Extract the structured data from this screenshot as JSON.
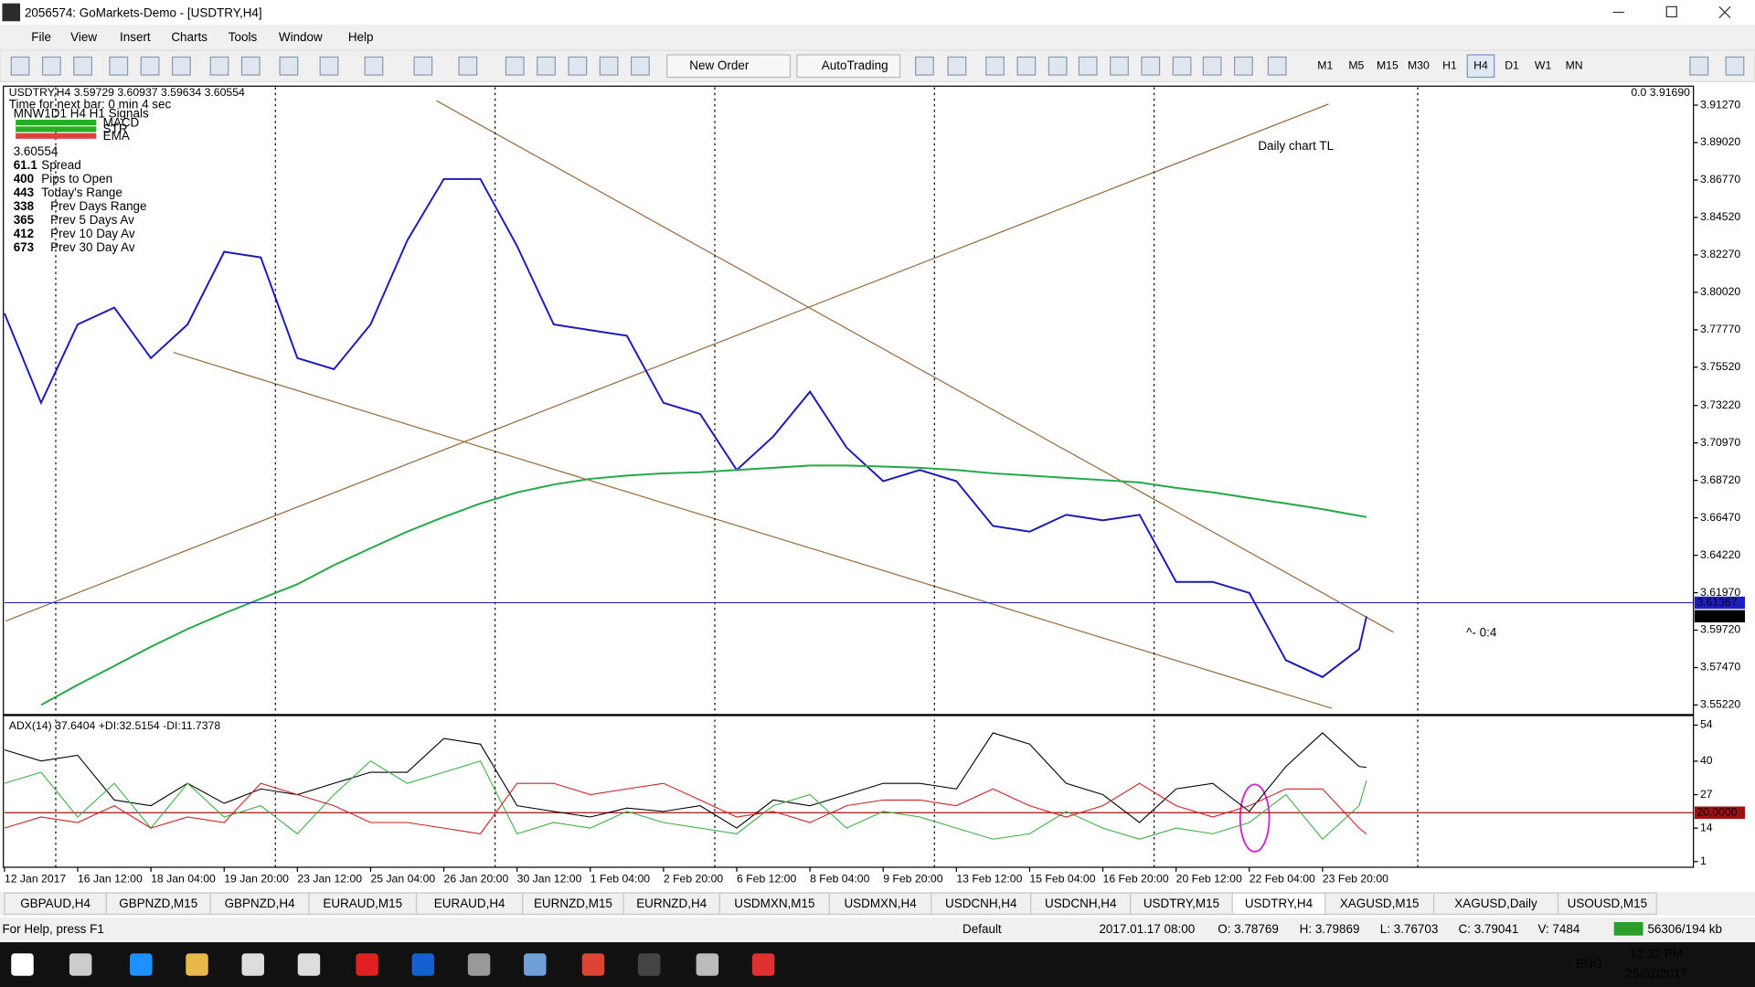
{
  "window_title": "2056574: GoMarkets-Demo - [USDTRY,H4]",
  "menu": [
    "File",
    "View",
    "Insert",
    "Charts",
    "Tools",
    "Window",
    "Help"
  ],
  "toolbar": {
    "buttons": [
      "New Order",
      "AutoTrading"
    ],
    "timeframes": [
      "M1",
      "M5",
      "M15",
      "M30",
      "H1",
      "H4",
      "D1",
      "W1",
      "MN"
    ]
  },
  "info_panel": {
    "symbol_header": "USDTRY,H4  3.59729 3.60937 3.59634 3.60554",
    "corner_value": "0.0 3.91690",
    "timer": "Time for next bar: 0 min 4 sec",
    "signals": "MNW1D1 H4 H1 Signals",
    "indicators": [
      "MACD",
      "STR",
      "EMA"
    ],
    "price": "3.60554",
    "stats": [
      [
        "61.1",
        "Spread"
      ],
      [
        "400",
        "Pips to Open"
      ],
      [
        "443",
        "Today's Range"
      ],
      [
        "338",
        "Prev Days Range"
      ],
      [
        "365",
        "Prev 5 Days Av"
      ],
      [
        "412",
        "Prev 10 Day Av"
      ],
      [
        "673",
        "Prev 30 Day Av"
      ]
    ]
  },
  "chart_data": [
    {
      "type": "line",
      "x": [
        0,
        5,
        10,
        15,
        20,
        25,
        30,
        35,
        40,
        45,
        50,
        55,
        60,
        65,
        70,
        75,
        80,
        85,
        90,
        95,
        100,
        105,
        110,
        115,
        120,
        125,
        130,
        135,
        140,
        145,
        150,
        155,
        160,
        165,
        170,
        175,
        180,
        185,
        186
      ],
      "xlim": [
        0,
        230.5
      ],
      "xticks": [
        {
          "value": 0,
          "label": "12 Jan 2017"
        },
        {
          "value": 10,
          "label": "16 Jan 12:00"
        },
        {
          "value": 20,
          "label": "18 Jan 04:00"
        },
        {
          "value": 30,
          "label": "19 Jan 20:00"
        },
        {
          "value": 40,
          "label": "23 Jan 12:00"
        },
        {
          "value": 50,
          "label": "25 Jan 04:00"
        },
        {
          "value": 60,
          "label": "26 Jan 20:00"
        },
        {
          "value": 70,
          "label": "30 Jan 12:00"
        },
        {
          "value": 80,
          "label": "1 Feb 04:00"
        },
        {
          "value": 90,
          "label": "2 Feb 20:00"
        },
        {
          "value": 100,
          "label": "6 Feb 12:00"
        },
        {
          "value": 110,
          "label": "8 Feb 04:00"
        },
        {
          "value": 120,
          "label": "9 Feb 20:00"
        },
        {
          "value": 130,
          "label": "13 Feb 12:00"
        },
        {
          "value": 140,
          "label": "15 Feb 04:00"
        },
        {
          "value": 150,
          "label": "16 Feb 20:00"
        },
        {
          "value": 160,
          "label": "20 Feb 12:00"
        },
        {
          "value": 170,
          "label": "22 Feb 04:00"
        },
        {
          "value": 180,
          "label": "23 Feb 20:00"
        }
      ],
      "separators": [
        7,
        37,
        67,
        97,
        127,
        157,
        193
      ],
      "ylim": [
        3.5475,
        3.9241
      ],
      "yticks": [
        {
          "value": 3.9127,
          "label": "3.91270"
        },
        {
          "value": 3.8902,
          "label": "3.89020"
        },
        {
          "value": 3.8677,
          "label": "3.86770"
        },
        {
          "value": 3.8452,
          "label": "3.84520"
        },
        {
          "value": 3.8227,
          "label": "3.82270"
        },
        {
          "value": 3.8002,
          "label": "3.80020"
        },
        {
          "value": 3.7777,
          "label": "3.77770"
        },
        {
          "value": 3.7552,
          "label": "3.75520"
        },
        {
          "value": 3.7322,
          "label": "3.73220"
        },
        {
          "value": 3.7097,
          "label": "3.70970"
        },
        {
          "value": 3.6872,
          "label": "3.68720"
        },
        {
          "value": 3.6647,
          "label": "3.66470"
        },
        {
          "value": 3.6422,
          "label": "3.64220"
        },
        {
          "value": 3.6197,
          "label": "3.61970"
        },
        {
          "value": 3.5972,
          "label": "3.59720"
        },
        {
          "value": 3.5747,
          "label": "3.57470"
        },
        {
          "value": 3.5522,
          "label": "3.55220"
        }
      ],
      "series": [
        {
          "color": "#1a1ab8",
          "values": [
            3.7876,
            3.7338,
            3.7809,
            3.791,
            3.7607,
            3.7809,
            3.8246,
            3.8212,
            3.7607,
            3.754,
            3.7809,
            3.8313,
            3.8683,
            3.8683,
            3.828,
            3.7809,
            3.7775,
            3.7741,
            3.7338,
            3.7271,
            3.6934,
            3.7136,
            3.7405,
            3.7069,
            3.6867,
            3.6934,
            3.6867,
            3.6598,
            3.6564,
            3.6665,
            3.6632,
            3.6665,
            3.6262,
            3.6262,
            3.6195,
            3.5791,
            3.569,
            3.5858,
            3.6055
          ]
        },
        {
          "color": "#22a845",
          "values": [
            null,
            3.5522,
            3.5643,
            3.5757,
            3.5872,
            3.5979,
            3.6073,
            3.6161,
            3.6248,
            3.6363,
            3.6464,
            3.6564,
            3.6652,
            3.6733,
            3.68,
            3.6847,
            3.6881,
            3.6901,
            3.6914,
            3.6921,
            3.6934,
            3.6948,
            3.6961,
            3.6961,
            3.6955,
            3.6948,
            3.6934,
            3.6914,
            3.6901,
            3.6887,
            3.6874,
            3.686,
            3.6827,
            3.68,
            3.6766,
            3.6733,
            3.6699,
            3.6659,
            3.6652
          ]
        }
      ],
      "price_lines": [
        {
          "value": 3.61367,
          "color": "#1f1fbf"
        },
        {
          "value": 3.60554,
          "color": "#000000"
        }
      ],
      "annotations": [
        {
          "text": "Daily chart TL",
          "color": "#8b4a1a"
        },
        {
          "text": "^- 0:4",
          "color": "#e02020"
        }
      ]
    },
    {
      "type": "line",
      "title": "ADX(14) 37.6404 +DI:32.5154 -DI:11.7378",
      "ylim": [
        -1.2,
        56.6
      ],
      "yticks": [
        54,
        40,
        27,
        14,
        1
      ],
      "level": {
        "value": 20,
        "label": "20.0000"
      },
      "series": [
        {
          "color": "#000000",
          "values": [
            44.4,
            40.1,
            42.3,
            24.9,
            22.7,
            31.4,
            23.6,
            29.2,
            27,
            31.4,
            35.7,
            35.7,
            48.8,
            46.6,
            22.7,
            20.5,
            18.3,
            21.8,
            20.5,
            22.7,
            14,
            24.9,
            22.7,
            27,
            31.4,
            31.4,
            29.2,
            51,
            46.6,
            31.4,
            27,
            16.2,
            29.2,
            31.4,
            20.5,
            37.9,
            51,
            37.9,
            37.6
          ]
        },
        {
          "color": "#3cb043",
          "values": [
            31.4,
            35.7,
            18.3,
            31.4,
            14,
            31.4,
            18.3,
            22.7,
            11.8,
            27,
            40.1,
            31.4,
            35.7,
            40.1,
            11.8,
            16.2,
            14,
            20.5,
            16.2,
            14,
            11.8,
            22.7,
            27,
            14,
            20.5,
            18.3,
            14,
            9.7,
            11.8,
            20.5,
            14,
            9.7,
            14,
            11.8,
            16.2,
            27,
            9.7,
            22.7,
            32.5
          ]
        },
        {
          "color": "#d02020",
          "values": [
            14,
            18.3,
            16.2,
            22.7,
            14,
            18.3,
            16.2,
            31.4,
            27,
            22.7,
            16.2,
            16.2,
            14,
            11.8,
            31.4,
            31.4,
            27,
            29.2,
            31.4,
            24.9,
            18.3,
            20.5,
            16.2,
            22.7,
            24.9,
            24.9,
            22.7,
            29.2,
            22.7,
            18.3,
            22.7,
            31.4,
            22.7,
            18.3,
            22.7,
            29.2,
            29.2,
            14,
            11.7
          ]
        }
      ]
    }
  ],
  "tabs": [
    "GBPAUD,H4",
    "GBPNZD,M15",
    "GBPNZD,H4",
    "EURAUD,M15",
    "EURAUD,H4",
    "EURNZD,M15",
    "EURNZD,H4",
    "USDMXN,M15",
    "USDMXN,H4",
    "USDCNH,H4",
    "USDCNH,H4",
    "USDTRY,M15",
    "USDTRY,H4",
    "XAGUSD,M15",
    "XAGUSD,Daily",
    "USOUSD,M15"
  ],
  "status_bar": [
    "For Help, press F1",
    "Default",
    "2017.01.17 08:00",
    "O: 3.78769",
    "H: 3.79869",
    "L: 3.76703",
    "C: 3.79041",
    "V: 7484",
    "56306/194 kb"
  ],
  "taskbar": {
    "language": "ENG",
    "time": "12:32 PM",
    "date": "25/02/2017"
  }
}
